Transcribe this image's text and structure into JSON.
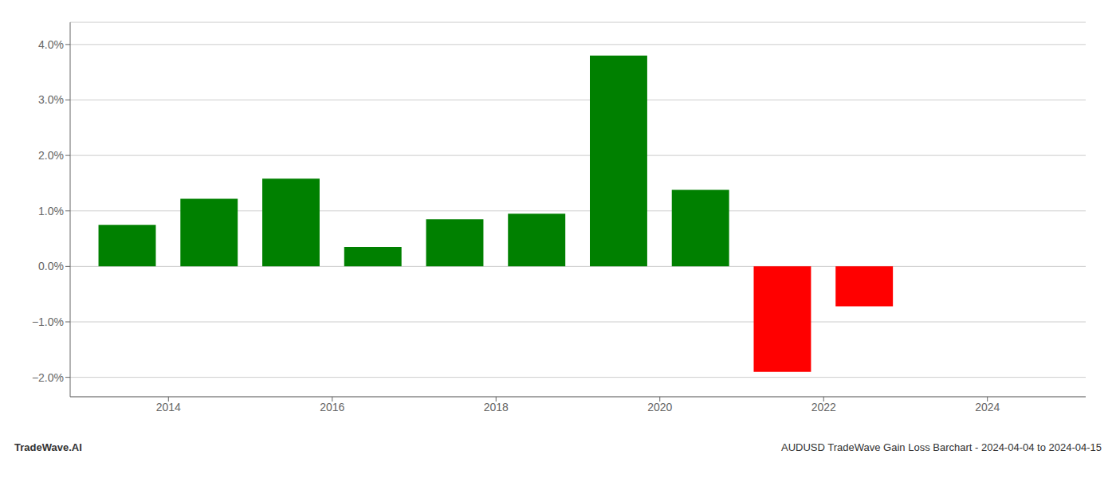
{
  "chart_data": {
    "type": "bar",
    "x": [
      2013.5,
      2014.5,
      2015.5,
      2016.5,
      2017.5,
      2018.5,
      2019.5,
      2020.5,
      2021.5,
      2022.5,
      2023.5
    ],
    "values": [
      0.0075,
      0.0122,
      0.0158,
      0.0035,
      0.0085,
      0.0095,
      0.038,
      0.0138,
      -0.019,
      -0.0072,
      0.0
    ],
    "colors": [
      "#008000",
      "#008000",
      "#008000",
      "#008000",
      "#008000",
      "#008000",
      "#008000",
      "#008000",
      "#ff0000",
      "#ff0000",
      "#ff0000"
    ],
    "xlim": [
      2012.8,
      2025.2
    ],
    "xticks": [
      2014,
      2016,
      2018,
      2020,
      2022,
      2024
    ],
    "ylim": [
      -0.0235,
      0.044
    ],
    "yticks": [
      {
        "value": -0.02,
        "label": "−2.0%"
      },
      {
        "value": -0.01,
        "label": "−1.0%"
      },
      {
        "value": 0.0,
        "label": "0.0%"
      },
      {
        "value": 0.01,
        "label": "1.0%"
      },
      {
        "value": 0.02,
        "label": "2.0%"
      },
      {
        "value": 0.03,
        "label": "3.0%"
      },
      {
        "value": 0.04,
        "label": "4.0%"
      }
    ],
    "grid": true,
    "annotations": [
      "TradeWave.AI",
      "AUDUSD TradeWave Gain Loss Barchart - 2024-04-04 to 2024-04-15"
    ]
  }
}
